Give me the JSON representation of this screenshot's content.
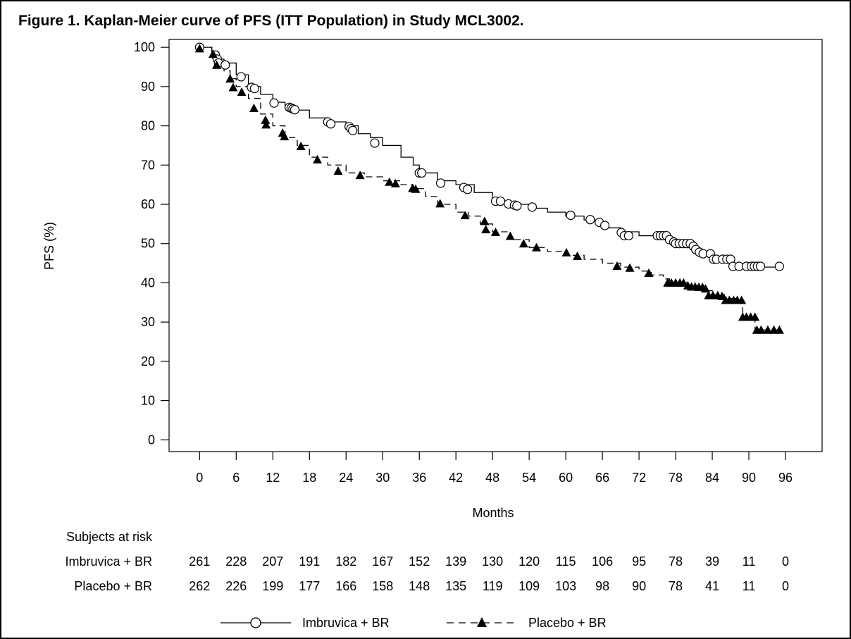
{
  "chart_data": {
    "type": "line",
    "title": "Figure 1. Kaplan-Meier curve of PFS (ITT Population) in Study MCL3002.",
    "xlabel": "Months",
    "ylabel": "PFS (%)",
    "xlim": [
      -5,
      102
    ],
    "ylim": [
      -3,
      102
    ],
    "x_ticks": [
      "0",
      "6",
      "12",
      "18",
      "24",
      "30",
      "36",
      "42",
      "48",
      "54",
      "60",
      "66",
      "72",
      "78",
      "84",
      "90",
      "96"
    ],
    "y_ticks": [
      "0",
      "10",
      "20",
      "30",
      "40",
      "50",
      "60",
      "70",
      "80",
      "90",
      "100"
    ],
    "legend_position": "bottom",
    "series": [
      {
        "name": "Imbruvica + BR",
        "line_style": "solid",
        "marker": "open-circle",
        "color": "#000000",
        "steps": [
          [
            0,
            100
          ],
          [
            2,
            99
          ],
          [
            3,
            97
          ],
          [
            4,
            96
          ],
          [
            6,
            93
          ],
          [
            8,
            90
          ],
          [
            10,
            88
          ],
          [
            12,
            86
          ],
          [
            14,
            85
          ],
          [
            16,
            84
          ],
          [
            18,
            82
          ],
          [
            21,
            81
          ],
          [
            24,
            80
          ],
          [
            26,
            78
          ],
          [
            28,
            77
          ],
          [
            30,
            75
          ],
          [
            33,
            72
          ],
          [
            35,
            70
          ],
          [
            36,
            68
          ],
          [
            39,
            66
          ],
          [
            42,
            65
          ],
          [
            45,
            63
          ],
          [
            48,
            61
          ],
          [
            50,
            60
          ],
          [
            54,
            59
          ],
          [
            57,
            58
          ],
          [
            60,
            57
          ],
          [
            63,
            56
          ],
          [
            66,
            54
          ],
          [
            69,
            53
          ],
          [
            72,
            52
          ],
          [
            74,
            52
          ],
          [
            76,
            51
          ],
          [
            78,
            50
          ],
          [
            80,
            49
          ],
          [
            82,
            48
          ],
          [
            84,
            46
          ],
          [
            86,
            46
          ],
          [
            87,
            44
          ],
          [
            95,
            44
          ]
        ],
        "censored": [
          [
            0,
            100
          ],
          [
            2.6,
            98
          ],
          [
            2.9,
            97
          ],
          [
            3.1,
            96
          ],
          [
            4.2,
            95.5
          ],
          [
            6.8,
            92.5
          ],
          [
            8.5,
            89.8
          ],
          [
            9,
            89.5
          ],
          [
            12.2,
            85.8
          ],
          [
            14.7,
            84.7
          ],
          [
            15,
            84.5
          ],
          [
            15.3,
            84.3
          ],
          [
            15.6,
            84.1
          ],
          [
            21,
            81
          ],
          [
            21.5,
            80.5
          ],
          [
            24.5,
            79.8
          ],
          [
            24.8,
            79.3
          ],
          [
            25.1,
            78.8
          ],
          [
            28.7,
            75.6
          ],
          [
            36,
            68
          ],
          [
            36.4,
            68
          ],
          [
            39.5,
            65.4
          ],
          [
            43.3,
            64.3
          ],
          [
            43.9,
            63.8
          ],
          [
            48.5,
            60.8
          ],
          [
            49.3,
            60.8
          ],
          [
            50.6,
            60.1
          ],
          [
            51.6,
            59.8
          ],
          [
            52,
            59.6
          ],
          [
            54.5,
            59.3
          ],
          [
            60.8,
            57.2
          ],
          [
            64,
            56.1
          ],
          [
            65.5,
            55.4
          ],
          [
            66.4,
            54.6
          ],
          [
            69.1,
            52.8
          ],
          [
            69.6,
            52
          ],
          [
            70.3,
            52
          ],
          [
            75,
            52
          ],
          [
            75.5,
            52
          ],
          [
            76,
            52
          ],
          [
            76.5,
            52
          ],
          [
            77,
            51
          ],
          [
            77.7,
            50.4
          ],
          [
            78,
            50
          ],
          [
            78.6,
            50
          ],
          [
            79.2,
            50
          ],
          [
            79.8,
            50
          ],
          [
            80.4,
            50
          ],
          [
            80.9,
            49.3
          ],
          [
            81.3,
            48.5
          ],
          [
            81.9,
            47.8
          ],
          [
            82.5,
            47.4
          ],
          [
            83.7,
            47.4
          ],
          [
            84.2,
            46
          ],
          [
            84.7,
            46
          ],
          [
            85.7,
            46
          ],
          [
            86.4,
            46
          ],
          [
            87,
            46
          ],
          [
            87.4,
            44.2
          ],
          [
            88.4,
            44.2
          ],
          [
            89.6,
            44.2
          ],
          [
            90.4,
            44.2
          ],
          [
            90.9,
            44.2
          ],
          [
            91.4,
            44.2
          ],
          [
            91.9,
            44.2
          ],
          [
            95,
            44.2
          ]
        ]
      },
      {
        "name": "Placebo + BR",
        "line_style": "dashed",
        "marker": "filled-triangle",
        "color": "#000000",
        "steps": [
          [
            0,
            100
          ],
          [
            2,
            98
          ],
          [
            3,
            96
          ],
          [
            4,
            94
          ],
          [
            5,
            92
          ],
          [
            6,
            90
          ],
          [
            8,
            87
          ],
          [
            10,
            83
          ],
          [
            12,
            80
          ],
          [
            14,
            77
          ],
          [
            16,
            75
          ],
          [
            18,
            72
          ],
          [
            21,
            70
          ],
          [
            24,
            68
          ],
          [
            27,
            67
          ],
          [
            30,
            66
          ],
          [
            33,
            65
          ],
          [
            35,
            64
          ],
          [
            37,
            62
          ],
          [
            39,
            60
          ],
          [
            42,
            58
          ],
          [
            44,
            57
          ],
          [
            46,
            55
          ],
          [
            48,
            53
          ],
          [
            51,
            51
          ],
          [
            54,
            49
          ],
          [
            57,
            48
          ],
          [
            60,
            47
          ],
          [
            63,
            46
          ],
          [
            66,
            45
          ],
          [
            69,
            44
          ],
          [
            72,
            43
          ],
          [
            74,
            42
          ],
          [
            76,
            41
          ],
          [
            77,
            40
          ],
          [
            80,
            39
          ],
          [
            82,
            38
          ],
          [
            84,
            37
          ],
          [
            86,
            36
          ],
          [
            88,
            35
          ],
          [
            89,
            31
          ],
          [
            91,
            28
          ],
          [
            95,
            28
          ]
        ]
      }
    ],
    "placebo_markers": [
      [
        0,
        99.7
      ],
      [
        2.2,
        98.3
      ],
      [
        2.8,
        95.5
      ],
      [
        5,
        92
      ],
      [
        5.5,
        89.8
      ],
      [
        6.9,
        88.6
      ],
      [
        8.9,
        84.5
      ],
      [
        10.8,
        81.5
      ],
      [
        10.9,
        80.3
      ],
      [
        13.6,
        78.2
      ],
      [
        13.9,
        77.3
      ],
      [
        16.6,
        74.8
      ],
      [
        19.3,
        71.4
      ],
      [
        22.7,
        68.5
      ],
      [
        26.3,
        67.4
      ],
      [
        31.1,
        65.7
      ],
      [
        32.1,
        65.3
      ],
      [
        34.9,
        64.1
      ],
      [
        35.4,
        63.9
      ],
      [
        39.4,
        60.2
      ],
      [
        43.5,
        57.2
      ],
      [
        46.7,
        55.7
      ],
      [
        46.9,
        53.6
      ],
      [
        48.5,
        52.9
      ],
      [
        50.9,
        51.9
      ],
      [
        53.1,
        50
      ],
      [
        55.2,
        49
      ],
      [
        60.1,
        47.7
      ],
      [
        61.9,
        46.8
      ],
      [
        68.4,
        44.3
      ],
      [
        70.5,
        43.8
      ],
      [
        73.6,
        42.5
      ],
      [
        76.7,
        40
      ],
      [
        77.3,
        40
      ],
      [
        78,
        40
      ],
      [
        78.7,
        40
      ],
      [
        79.3,
        40
      ],
      [
        80,
        39.3
      ],
      [
        80.6,
        39
      ],
      [
        81.2,
        39
      ],
      [
        81.8,
        38.9
      ],
      [
        82.4,
        38.9
      ],
      [
        82.9,
        38.5
      ],
      [
        83.4,
        36.8
      ],
      [
        84.1,
        36.8
      ],
      [
        84.9,
        36.8
      ],
      [
        85.6,
        36.6
      ],
      [
        86.2,
        35.6
      ],
      [
        86.8,
        35.6
      ],
      [
        87.5,
        35.6
      ],
      [
        88.1,
        35.6
      ],
      [
        88.8,
        35.6
      ],
      [
        89,
        31.3
      ],
      [
        89.6,
        31.3
      ],
      [
        90.3,
        31.3
      ],
      [
        91,
        31.3
      ],
      [
        91.3,
        28
      ],
      [
        92,
        28
      ],
      [
        93.1,
        28
      ],
      [
        94.1,
        28
      ],
      [
        95,
        28
      ]
    ],
    "at_risk": {
      "header": "Subjects at risk",
      "rows": [
        {
          "label": "Imbruvica + BR",
          "values": [
            "261",
            "228",
            "207",
            "191",
            "182",
            "167",
            "152",
            "139",
            "130",
            "120",
            "115",
            "106",
            "95",
            "78",
            "39",
            "11",
            "0"
          ]
        },
        {
          "label": "Placebo + BR",
          "values": [
            "262",
            "226",
            "199",
            "177",
            "166",
            "158",
            "148",
            "135",
            "119",
            "109",
            "103",
            "98",
            "90",
            "78",
            "41",
            "11",
            "0"
          ]
        }
      ]
    }
  }
}
